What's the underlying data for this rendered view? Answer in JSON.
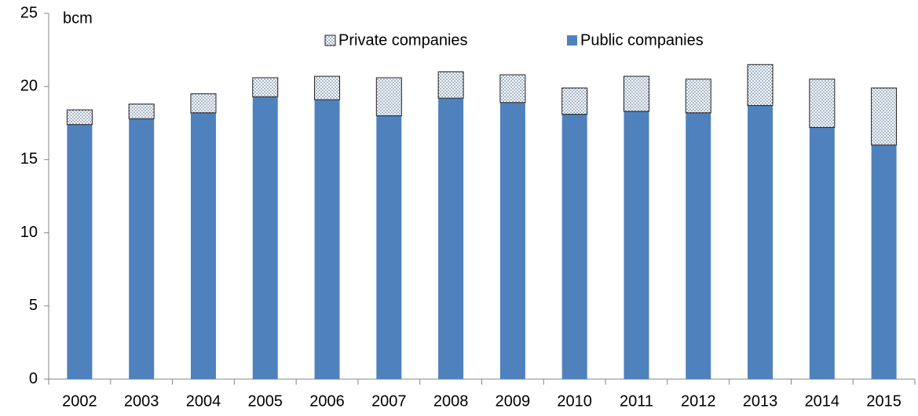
{
  "chart_data": {
    "type": "stacked_bar",
    "y_label": "bcm",
    "categories": [
      "2002",
      "2003",
      "2004",
      "2005",
      "2006",
      "2007",
      "2008",
      "2009",
      "2010",
      "2011",
      "2012",
      "2013",
      "2014",
      "2015"
    ],
    "series": [
      {
        "name": "Private companies",
        "color": "#385d8a",
        "pattern": "dotted",
        "values": [
          1.0,
          1.0,
          1.3,
          1.3,
          1.6,
          2.6,
          1.8,
          1.9,
          1.8,
          2.4,
          2.3,
          2.8,
          3.3,
          3.9
        ]
      },
      {
        "name": "Public companies",
        "color": "#4f81bd",
        "values": [
          17.4,
          17.8,
          18.2,
          19.3,
          19.1,
          18.0,
          19.2,
          18.9,
          18.1,
          18.3,
          18.2,
          18.7,
          17.2,
          16.0
        ]
      }
    ],
    "ylim": [
      0,
      25
    ],
    "yticks": [
      0,
      5,
      10,
      15,
      20,
      25
    ],
    "grid": false,
    "legend": "top"
  }
}
